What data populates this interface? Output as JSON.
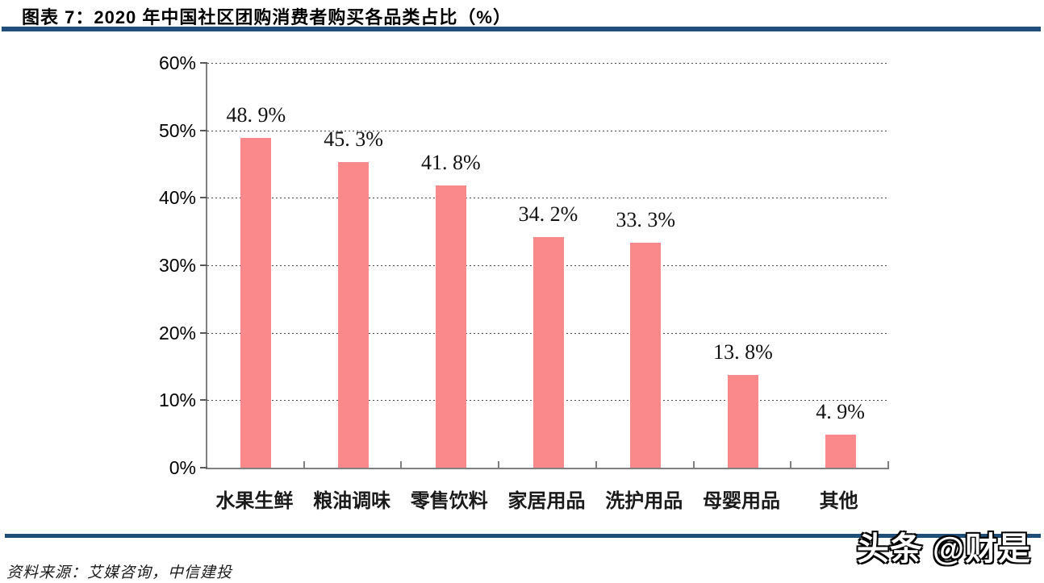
{
  "header": {
    "title": "图表 7：2020 年中国社区团购消费者购买各品类占比（%）"
  },
  "chart_data": {
    "type": "bar",
    "title": "2020 年中国社区团购消费者购买各品类占比（%）",
    "categories": [
      "水果生鲜",
      "粮油调味",
      "零售饮料",
      "家居用品",
      "洗护用品",
      "母婴用品",
      "其他"
    ],
    "values": [
      48.9,
      45.3,
      41.8,
      34.2,
      33.3,
      13.8,
      4.9
    ],
    "value_labels": [
      "48. 9%",
      "45. 3%",
      "41. 8%",
      "34. 2%",
      "33. 3%",
      "13. 8%",
      "4. 9%"
    ],
    "xlabel": "",
    "ylabel": "",
    "ylim": [
      0,
      60
    ],
    "ytick_step": 10,
    "ytick_labels": [
      "0%",
      "10%",
      "20%",
      "30%",
      "40%",
      "50%",
      "60%"
    ],
    "grid": "horizontal-dashed",
    "legend": "none",
    "bar_color": "#F9898B"
  },
  "footer": {
    "source": "资料来源：艾媒咨询，中信建投",
    "watermark": "头条 @财是"
  },
  "colors": {
    "accent_navy": "#1F4E79",
    "bar": "#F9898B",
    "axis_gray": "#808080"
  }
}
